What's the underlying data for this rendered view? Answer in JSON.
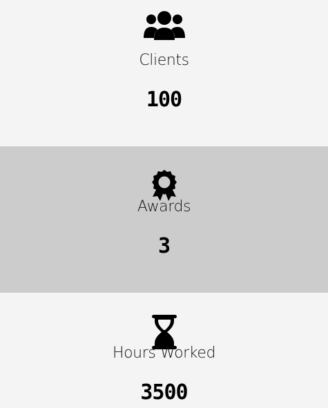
{
  "stats": [
    {
      "icon": "users-icon",
      "label": "Clients",
      "value": "100",
      "background": "#f4f4f4"
    },
    {
      "icon": "award-icon",
      "label": "Awards",
      "value": "3",
      "background": "#cccccc"
    },
    {
      "icon": "hourglass-icon",
      "label": "Hours Worked",
      "value": "3500",
      "background": "#f4f4f4"
    }
  ]
}
